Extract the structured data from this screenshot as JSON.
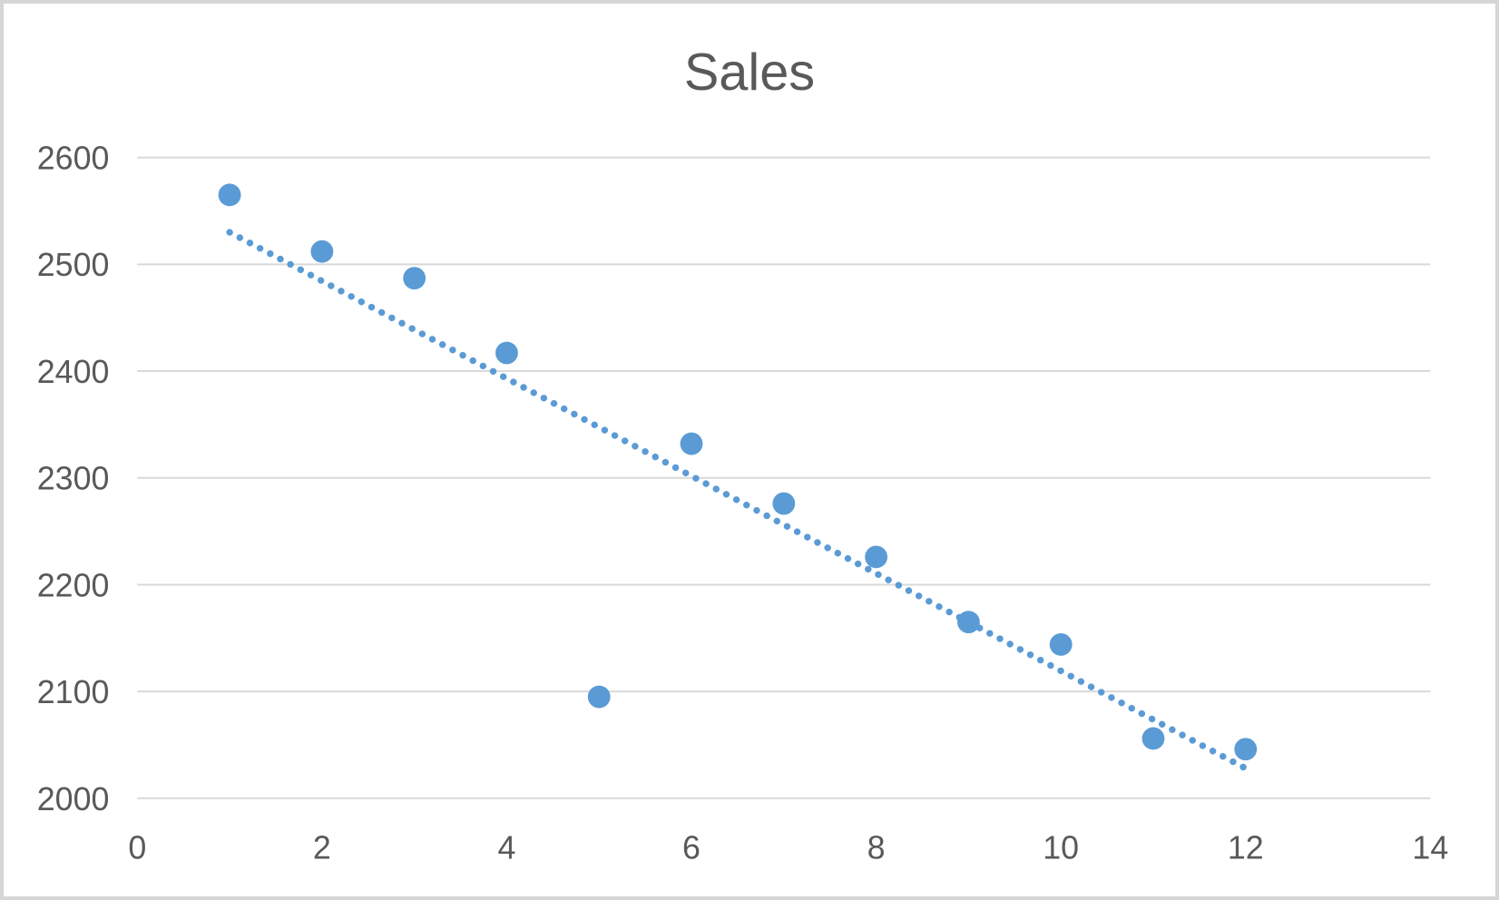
{
  "chart_data": {
    "type": "scatter",
    "title": "Sales",
    "x": [
      1,
      2,
      3,
      4,
      5,
      6,
      7,
      8,
      9,
      10,
      11,
      12
    ],
    "y": [
      2565,
      2512,
      2487,
      2417,
      2095,
      2332,
      2276,
      2226,
      2165,
      2144,
      2056,
      2046
    ],
    "xlabel": "",
    "ylabel": "",
    "xlim": [
      0,
      14
    ],
    "ylim": [
      2000,
      2600
    ],
    "x_ticks": [
      0,
      2,
      4,
      6,
      8,
      10,
      12,
      14
    ],
    "y_ticks": [
      2000,
      2100,
      2200,
      2300,
      2400,
      2500,
      2600
    ],
    "grid": true,
    "legend_position": "none",
    "marker": {
      "shape": "circle",
      "color": "#5b9bd5",
      "radius": 12.5
    },
    "trendline": {
      "type": "linear",
      "style": "round-dot",
      "color": "#5b9bd5",
      "x_start": 1,
      "y_start": 2530,
      "x_end": 12,
      "y_end": 2028
    },
    "colors": {
      "accent": "#5b9bd5",
      "text": "#595959",
      "gridline": "#d9d9d9",
      "frame_border": "#d6d6d6",
      "background": "#ffffff"
    }
  }
}
